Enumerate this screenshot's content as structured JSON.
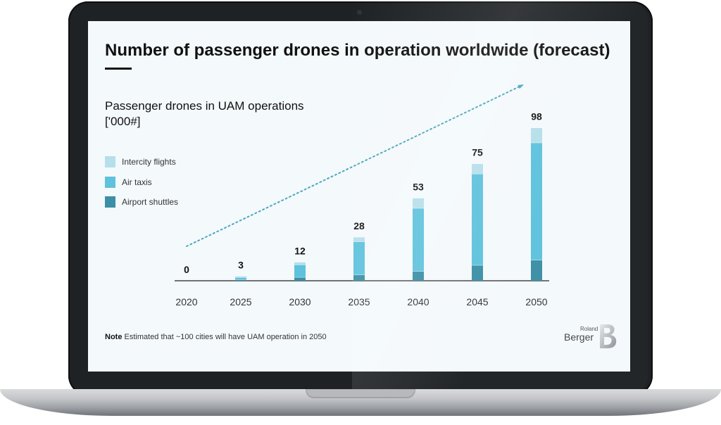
{
  "slide": {
    "title": "Number of passenger drones in operation worldwide (forecast)",
    "subtitle_line1": "Passenger drones in UAM operations",
    "subtitle_line2": "['000#]",
    "note_label": "Note",
    "note_text": "Estimated that ~100 cities will have UAM operation in 2050",
    "logo_small": "Roland",
    "logo_main": "Berger",
    "logo_mark": "B"
  },
  "colors": {
    "intercity": "#b5dfea",
    "air_taxis": "#5ec2dc",
    "airport_shuttles": "#3b8fa6",
    "trend_arrow": "#4aa8bd",
    "axis": "#222222"
  },
  "chart_data": {
    "type": "bar",
    "stacked": true,
    "title": "Number of passenger drones in operation worldwide (forecast)",
    "ylabel": "Passenger drones in UAM operations ['000#]",
    "xlabel": "",
    "categories": [
      "2020",
      "2025",
      "2030",
      "2035",
      "2040",
      "2045",
      "2050"
    ],
    "series": [
      {
        "name": "Airport shuttles",
        "values": [
          0,
          0.8,
          2.3,
          3.9,
          6.1,
          10.0,
          13.3
        ]
      },
      {
        "name": "Air taxis",
        "values": [
          0,
          1.4,
          8.0,
          21.2,
          40.4,
          58.5,
          75.1
        ]
      },
      {
        "name": "Intercity flights",
        "values": [
          0,
          0.8,
          1.7,
          2.9,
          6.5,
          6.5,
          9.6
        ]
      }
    ],
    "totals": [
      0,
      3,
      12,
      28,
      53,
      75,
      98
    ],
    "ylim": [
      0,
      100
    ],
    "legend": "left",
    "grid": false,
    "trend_arrow": true
  }
}
